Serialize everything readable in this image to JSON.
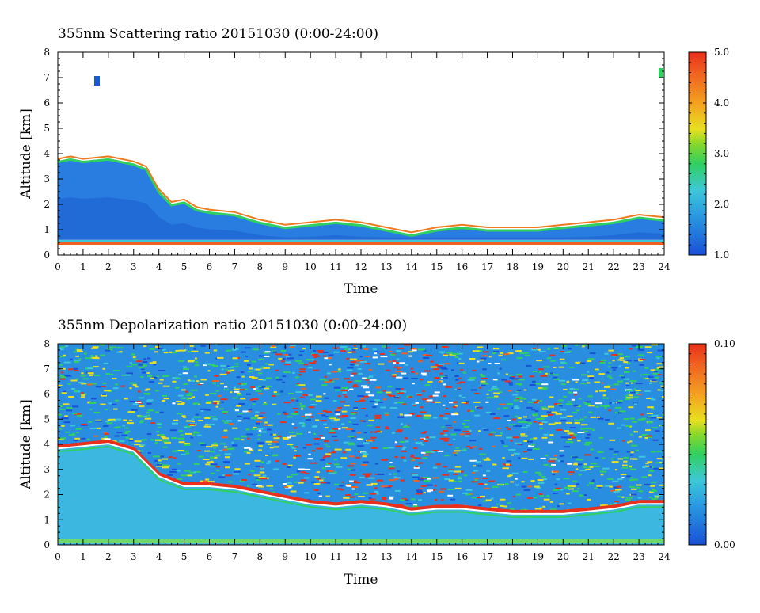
{
  "chart_data": [
    {
      "type": "heatmap",
      "title": "355nm Scattering ratio  20151030 (0:00-24:00)",
      "xlabel": "Time",
      "ylabel": "Altitude [km]",
      "xlim": [
        0,
        24
      ],
      "ylim": [
        0,
        8
      ],
      "xticks": [
        "0",
        "1",
        "2",
        "3",
        "4",
        "5",
        "6",
        "7",
        "8",
        "9",
        "10",
        "11",
        "12",
        "13",
        "14",
        "15",
        "16",
        "17",
        "18",
        "19",
        "20",
        "21",
        "22",
        "23",
        "24"
      ],
      "yticks": [
        "0",
        "1",
        "2",
        "3",
        "4",
        "5",
        "6",
        "7",
        "8"
      ],
      "colorbar": {
        "range": [
          1.0,
          5.0
        ],
        "ticks": [
          "5.0",
          "4.0",
          "3.0",
          "2.0",
          "1.0"
        ]
      },
      "boundary_layer_top_km": [
        {
          "t": 0,
          "h": 3.7
        },
        {
          "t": 0.5,
          "h": 3.8
        },
        {
          "t": 1,
          "h": 3.7
        },
        {
          "t": 2,
          "h": 3.8
        },
        {
          "t": 3,
          "h": 3.6
        },
        {
          "t": 3.5,
          "h": 3.4
        },
        {
          "t": 4,
          "h": 2.5
        },
        {
          "t": 4.5,
          "h": 2.0
        },
        {
          "t": 5,
          "h": 2.1
        },
        {
          "t": 5.5,
          "h": 1.8
        },
        {
          "t": 6,
          "h": 1.7
        },
        {
          "t": 7,
          "h": 1.6
        },
        {
          "t": 8,
          "h": 1.3
        },
        {
          "t": 9,
          "h": 1.1
        },
        {
          "t": 10,
          "h": 1.2
        },
        {
          "t": 11,
          "h": 1.3
        },
        {
          "t": 12,
          "h": 1.2
        },
        {
          "t": 13,
          "h": 1.0
        },
        {
          "t": 14,
          "h": 0.8
        },
        {
          "t": 15,
          "h": 1.0
        },
        {
          "t": 16,
          "h": 1.1
        },
        {
          "t": 17,
          "h": 1.0
        },
        {
          "t": 18,
          "h": 1.0
        },
        {
          "t": 19,
          "h": 1.0
        },
        {
          "t": 20,
          "h": 1.1
        },
        {
          "t": 21,
          "h": 1.2
        },
        {
          "t": 22,
          "h": 1.3
        },
        {
          "t": 23,
          "h": 1.5
        },
        {
          "t": 24,
          "h": 1.4
        }
      ]
    },
    {
      "type": "heatmap",
      "title": "355nm Depolarization ratio  20151030 (0:00-24:00)",
      "xlabel": "Time",
      "ylabel": "Altitude [km]",
      "xlim": [
        0,
        24
      ],
      "ylim": [
        0,
        8
      ],
      "xticks": [
        "0",
        "1",
        "2",
        "3",
        "4",
        "5",
        "6",
        "7",
        "8",
        "9",
        "10",
        "11",
        "12",
        "13",
        "14",
        "15",
        "16",
        "17",
        "18",
        "19",
        "20",
        "21",
        "22",
        "23",
        "24"
      ],
      "yticks": [
        "0",
        "1",
        "2",
        "3",
        "4",
        "5",
        "6",
        "7",
        "8"
      ],
      "colorbar": {
        "range": [
          0.0,
          0.1
        ],
        "ticks": [
          "0.10",
          "0.00"
        ]
      },
      "boundary_layer_top_km": [
        {
          "t": 0,
          "h": 3.8
        },
        {
          "t": 1,
          "h": 3.9
        },
        {
          "t": 2,
          "h": 4.0
        },
        {
          "t": 3,
          "h": 3.7
        },
        {
          "t": 4,
          "h": 2.7
        },
        {
          "t": 5,
          "h": 2.3
        },
        {
          "t": 6,
          "h": 2.3
        },
        {
          "t": 7,
          "h": 2.2
        },
        {
          "t": 8,
          "h": 2.0
        },
        {
          "t": 9,
          "h": 1.8
        },
        {
          "t": 10,
          "h": 1.6
        },
        {
          "t": 11,
          "h": 1.5
        },
        {
          "t": 12,
          "h": 1.6
        },
        {
          "t": 13,
          "h": 1.5
        },
        {
          "t": 14,
          "h": 1.3
        },
        {
          "t": 15,
          "h": 1.4
        },
        {
          "t": 16,
          "h": 1.4
        },
        {
          "t": 17,
          "h": 1.3
        },
        {
          "t": 18,
          "h": 1.2
        },
        {
          "t": 19,
          "h": 1.2
        },
        {
          "t": 20,
          "h": 1.2
        },
        {
          "t": 21,
          "h": 1.3
        },
        {
          "t": 22,
          "h": 1.4
        },
        {
          "t": 23,
          "h": 1.6
        },
        {
          "t": 24,
          "h": 1.6
        }
      ]
    }
  ]
}
